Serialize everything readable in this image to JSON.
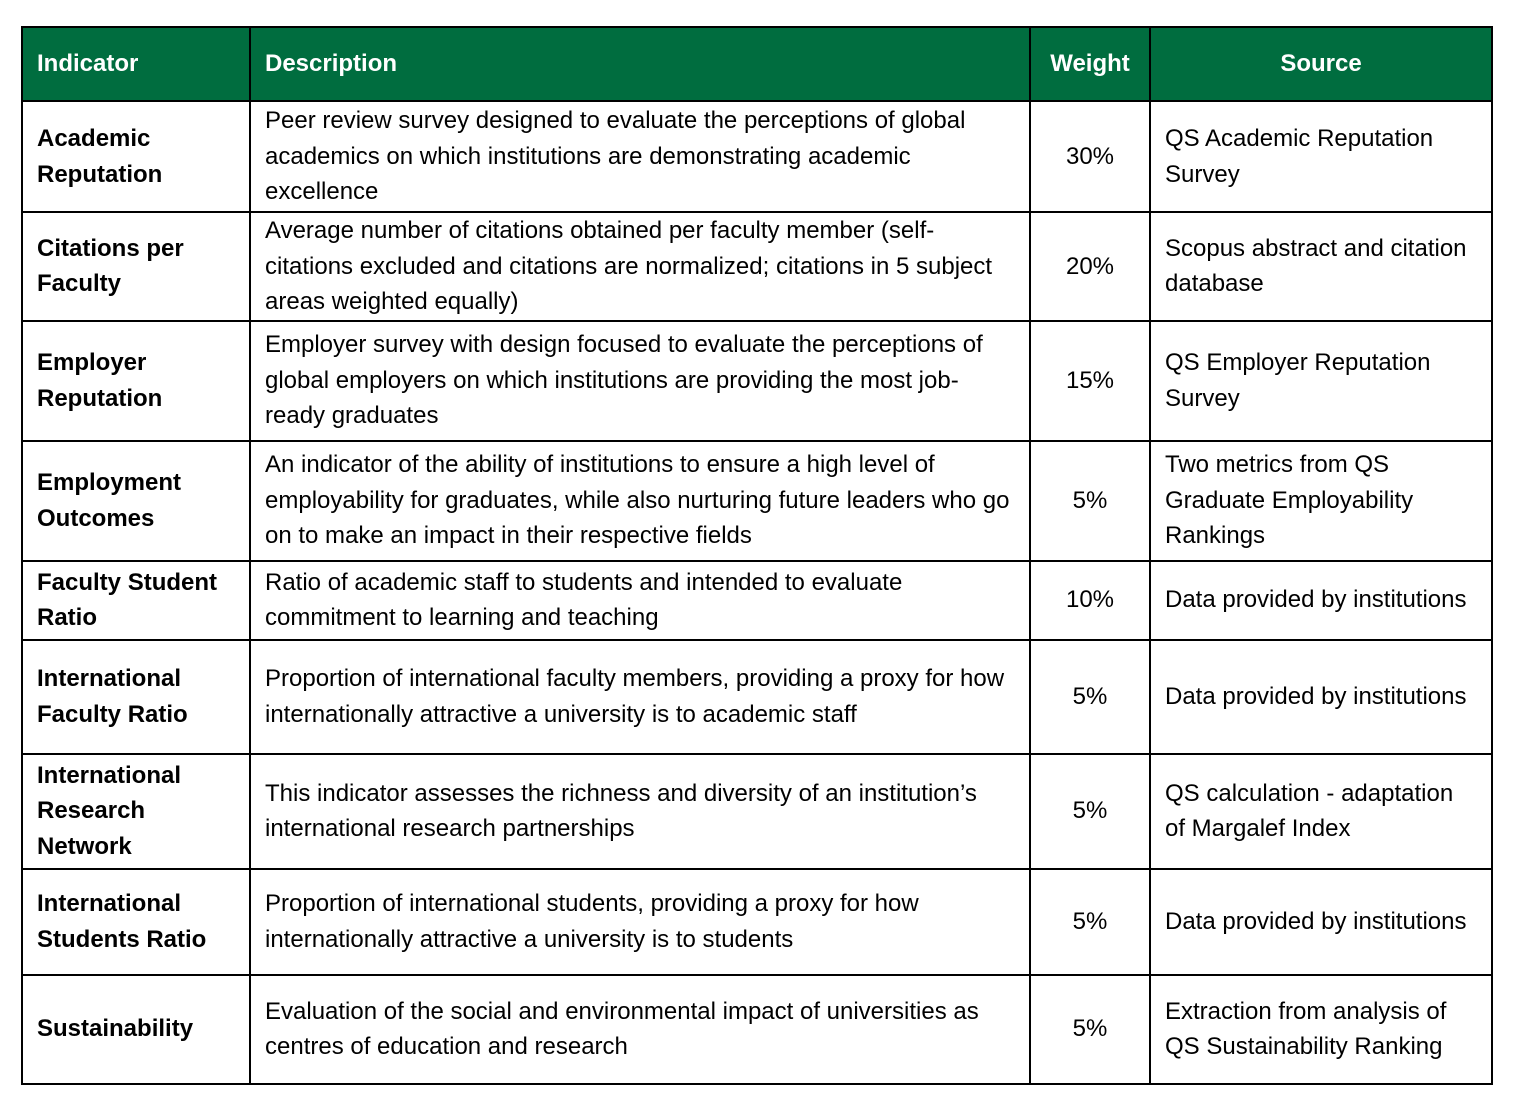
{
  "table": {
    "headers": {
      "indicator": "Indicator",
      "description": "Description",
      "weight": "Weight",
      "source": "Source"
    },
    "rows": [
      {
        "indicator": "Academic Reputation",
        "description": "Peer review survey designed to evaluate the perceptions of global academics on which institutions are demonstrating academic excellence",
        "weight": "30%",
        "source": "QS Academic Reputation Survey"
      },
      {
        "indicator": "Citations per Faculty",
        "description": "Average number of citations obtained per faculty member (self-citations excluded and citations are normalized; citations in 5 subject areas weighted equally)",
        "weight": "20%",
        "source": "Scopus abstract and citation database"
      },
      {
        "indicator": "Employer Reputation",
        "description": "Employer survey with design focused to evaluate the perceptions of global employers on which institutions are providing the most job-ready graduates",
        "weight": "15%",
        "source": "QS Employer Reputation Survey"
      },
      {
        "indicator": "Employment Outcomes",
        "description": "An indicator of the ability of institutions to ensure a high level of employability for graduates, while also nurturing future leaders who go on to make an impact in their respective fields",
        "weight": "5%",
        "source": "Two metrics from QS Graduate Employability Rankings"
      },
      {
        "indicator": "Faculty Student Ratio",
        "description": "Ratio of academic staff to students and intended to evaluate commitment to learning and teaching",
        "weight": "10%",
        "source": "Data provided by institutions"
      },
      {
        "indicator": "International Faculty Ratio",
        "description": "Proportion of international faculty members, providing a proxy for how internationally attractive a university is to academic staff",
        "weight": "5%",
        "source": "Data provided by institutions"
      },
      {
        "indicator": "International Research Network",
        "description": "This indicator assesses the richness and diversity of an institution’s international research partnerships",
        "weight": "5%",
        "source": "QS calculation - adaptation of Margalef Index"
      },
      {
        "indicator": "International Students Ratio",
        "description": "Proportion of international students, providing a proxy for how internationally attractive a university is to students",
        "weight": "5%",
        "source": "Data provided by institutions"
      },
      {
        "indicator": "Sustainability",
        "description": "Evaluation of the social and environmental impact of universities as centres of education and research",
        "weight": "5%",
        "source": "Extraction from analysis of QS Sustainability Ranking"
      }
    ]
  },
  "colors": {
    "header_background": "#006d3f",
    "header_text": "#ffffff",
    "border": "#000000"
  }
}
